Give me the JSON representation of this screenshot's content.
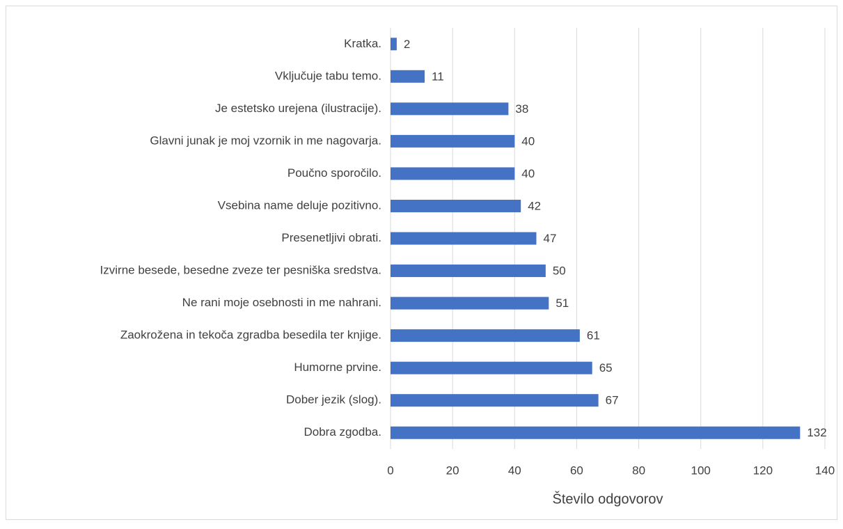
{
  "chart_data": {
    "type": "bar",
    "orientation": "horizontal",
    "x_label": "Število odgovorov",
    "categories": [
      "Kratka.",
      "Vključuje tabu temo.",
      "Je estetsko urejena (ilustracije).",
      "Glavni junak je moj vzornik in me nagovarja.",
      "Poučno sporočilo.",
      "Vsebina name deluje pozitivno.",
      "Presenetljivi obrati.",
      "Izvirne besede, besedne zveze ter pesniška sredstva.",
      "Ne rani moje osebnosti in me nahrani.",
      "Zaokrožena in tekoča zgradba besedila ter knjige.",
      "Humorne prvine.",
      "Dober jezik (slog).",
      "Dobra zgodba."
    ],
    "values": [
      2,
      11,
      38,
      40,
      40,
      42,
      47,
      50,
      51,
      61,
      65,
      67,
      132
    ],
    "color": "#4472c4",
    "xlim": [
      0,
      140
    ],
    "xticks": [
      0,
      20,
      40,
      60,
      80,
      100,
      120,
      140
    ],
    "grid": true
  }
}
